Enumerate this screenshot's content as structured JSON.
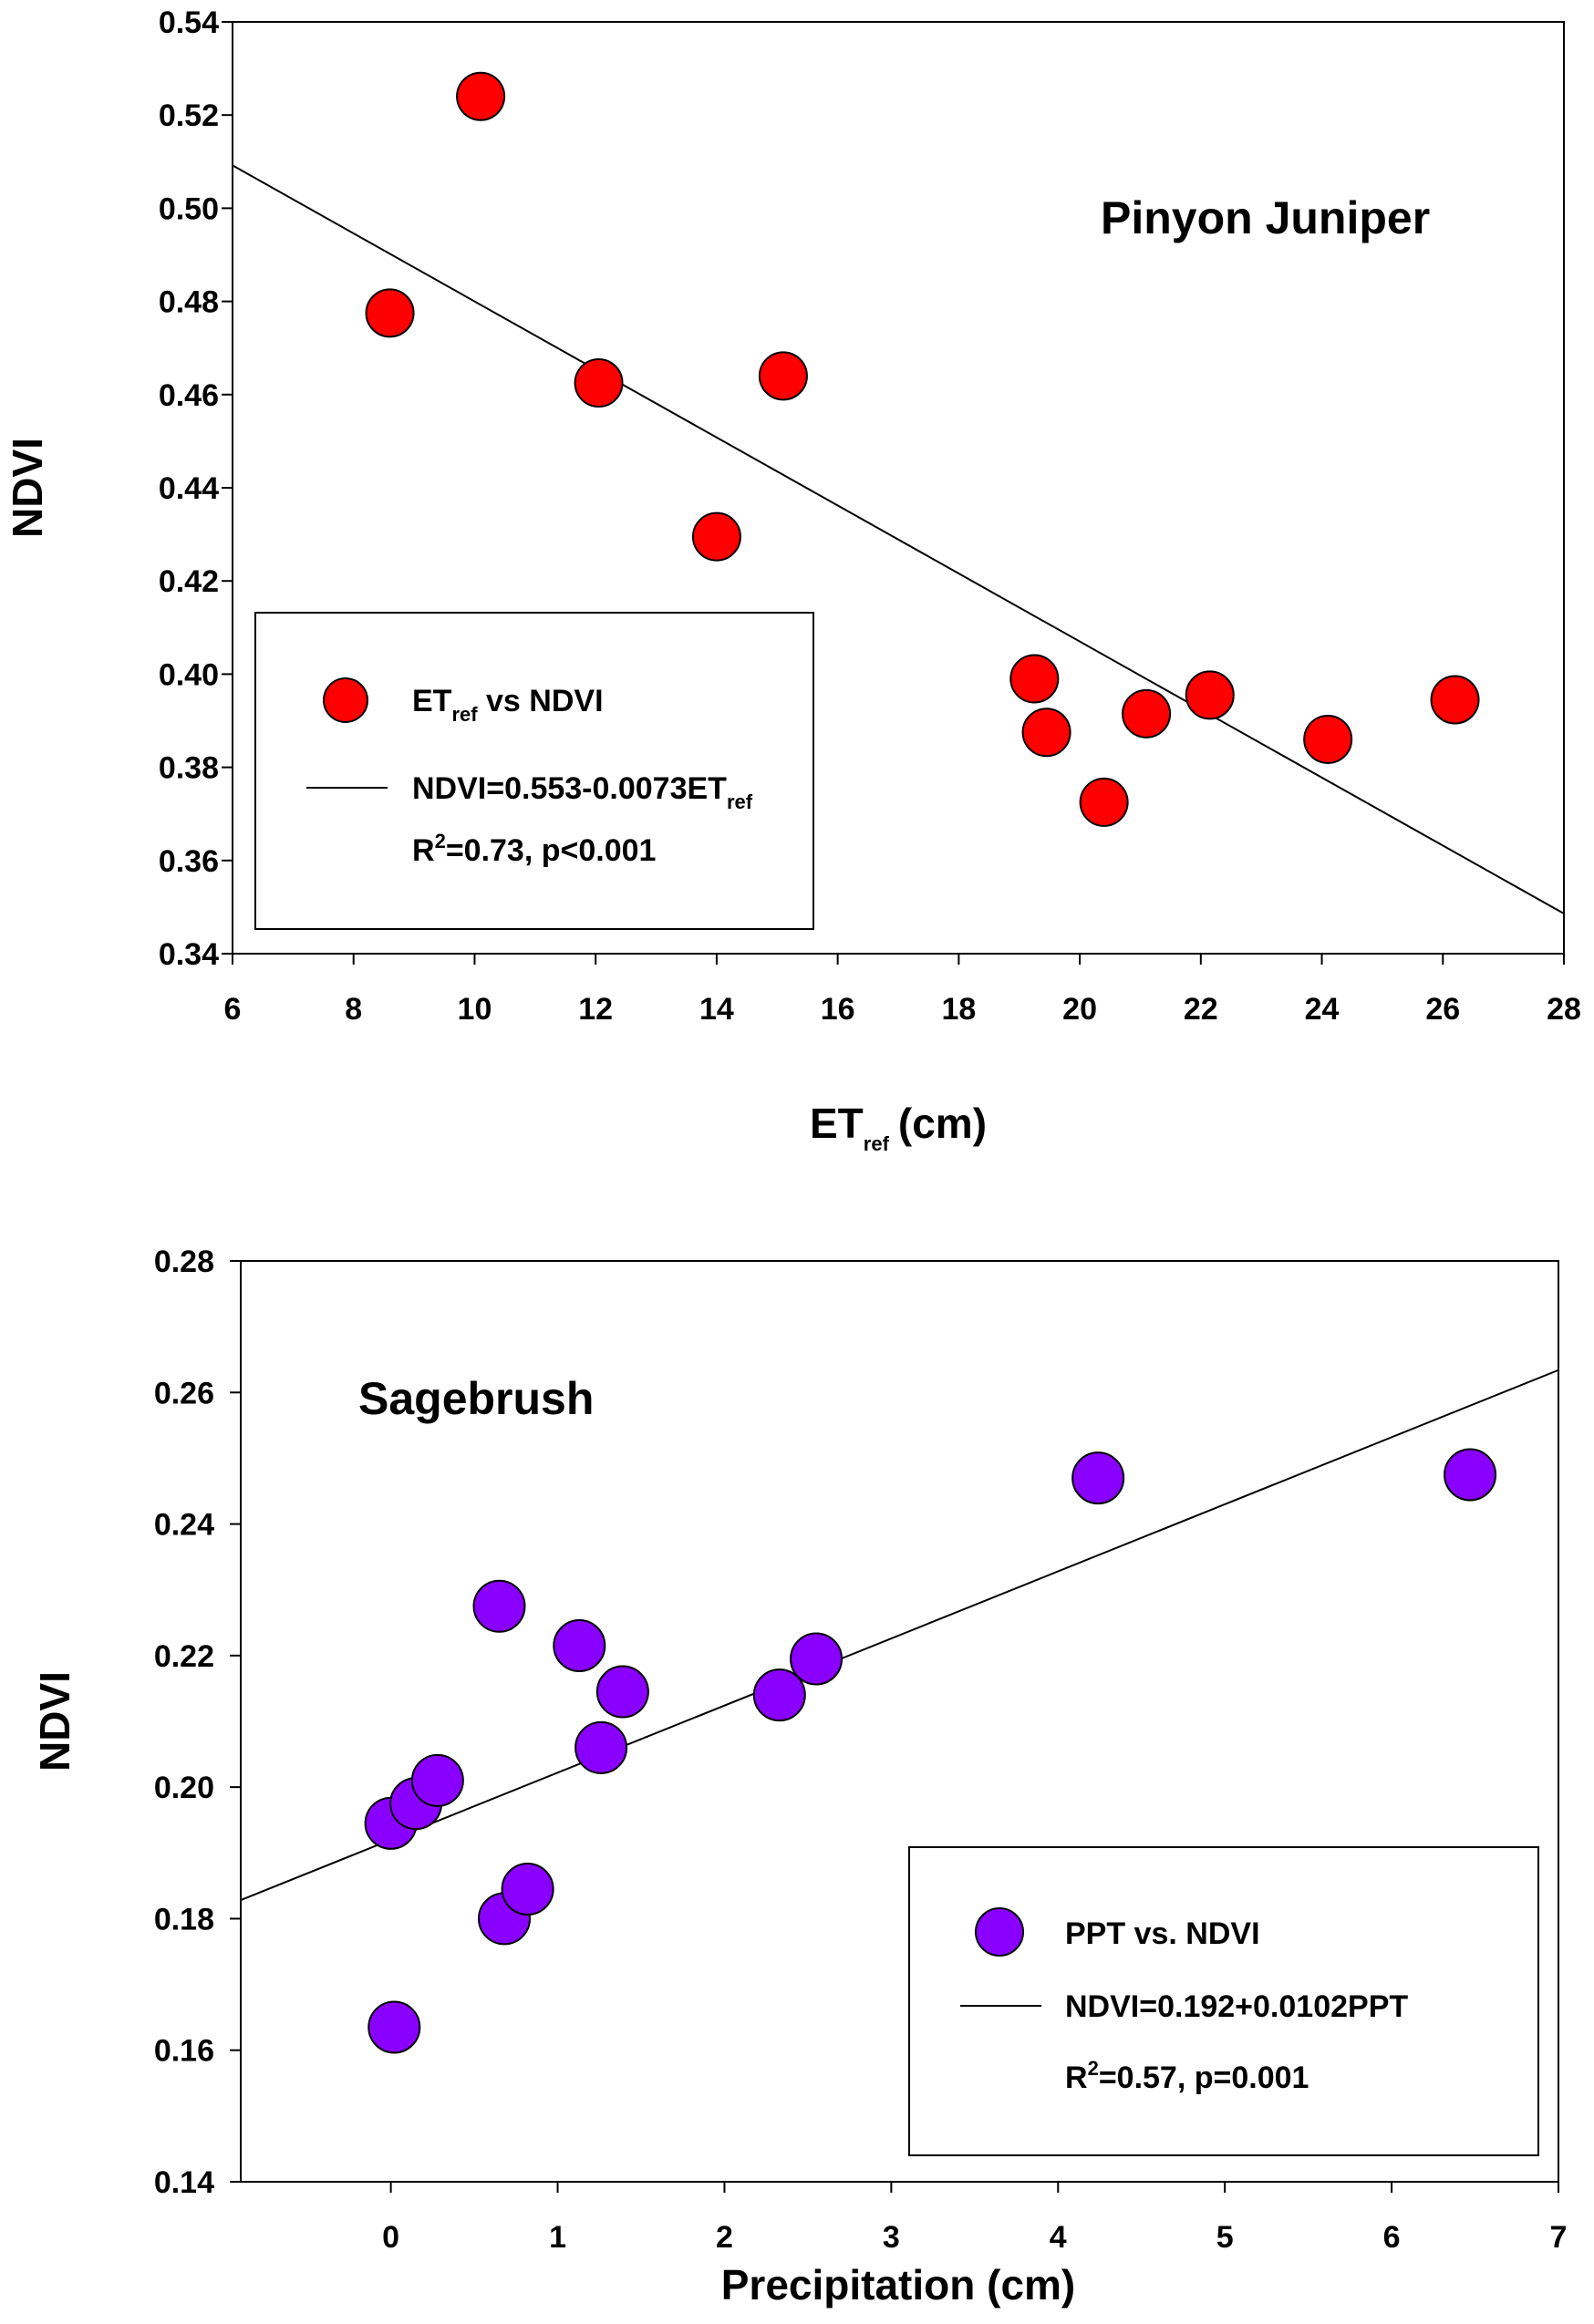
{
  "chart_data": [
    {
      "type": "scatter",
      "title": "",
      "annotation": "Pinyon Juniper",
      "xlabel": {
        "main": "ET",
        "sub": "ref",
        "unit": "(cm)"
      },
      "ylabel": "NDVI",
      "xlim": [
        6,
        28
      ],
      "ylim": [
        0.34,
        0.54
      ],
      "xticks": [
        "6",
        "8",
        "10",
        "12",
        "14",
        "16",
        "18",
        "20",
        "22",
        "24",
        "26",
        "28"
      ],
      "yticks": [
        "0.34",
        "0.36",
        "0.38",
        "0.40",
        "0.42",
        "0.44",
        "0.46",
        "0.48",
        "0.50",
        "0.52",
        "0.54"
      ],
      "grid": false,
      "legend_position": "bottom-left",
      "marker_color": "#ff0000",
      "series": [
        {
          "name": "ET_ref vs NDVI",
          "points": [
            {
              "x": 8.6,
              "y": 0.4775
            },
            {
              "x": 10.1,
              "y": 0.524
            },
            {
              "x": 12.05,
              "y": 0.4625
            },
            {
              "x": 14.0,
              "y": 0.4295
            },
            {
              "x": 15.1,
              "y": 0.464
            },
            {
              "x": 19.25,
              "y": 0.399
            },
            {
              "x": 19.45,
              "y": 0.3875
            },
            {
              "x": 20.4,
              "y": 0.3725
            },
            {
              "x": 21.1,
              "y": 0.3915
            },
            {
              "x": 22.15,
              "y": 0.3955
            },
            {
              "x": 24.1,
              "y": 0.386
            },
            {
              "x": 26.2,
              "y": 0.3945
            }
          ]
        }
      ],
      "fit": {
        "intercept": 0.553,
        "slope": -0.0073,
        "x_range": [
          6,
          28
        ]
      },
      "legend": {
        "marker_label_main": "ET",
        "marker_label_sub": "ref",
        "marker_label_rest": " vs NDVI",
        "line_label_main": "NDVI=0.553-0.0073ET",
        "line_label_sub": "ref",
        "r2_prefix": "R",
        "r2_sup": "2",
        "r2_rest": "=0.73, p<0.001"
      }
    },
    {
      "type": "scatter",
      "title": "",
      "annotation": "Sagebrush",
      "xlabel": "Precipitation (cm)",
      "ylabel": "NDVI",
      "xlim": [
        -0.9,
        7
      ],
      "ylim": [
        0.14,
        0.28
      ],
      "xticks": [
        "0",
        "1",
        "2",
        "3",
        "4",
        "5",
        "6",
        "7"
      ],
      "yticks": [
        "0.14",
        "0.16",
        "0.18",
        "0.20",
        "0.22",
        "0.24",
        "0.26",
        "0.28"
      ],
      "grid": false,
      "legend_position": "bottom-right",
      "marker_color": "#8a00ff",
      "series": [
        {
          "name": "PPT vs. NDVI",
          "points": [
            {
              "x": 0.0,
              "y": 0.1945
            },
            {
              "x": 0.02,
              "y": 0.1635
            },
            {
              "x": 0.15,
              "y": 0.1975
            },
            {
              "x": 0.28,
              "y": 0.201
            },
            {
              "x": 0.65,
              "y": 0.2275
            },
            {
              "x": 0.68,
              "y": 0.18
            },
            {
              "x": 0.82,
              "y": 0.1845
            },
            {
              "x": 1.13,
              "y": 0.2215
            },
            {
              "x": 1.26,
              "y": 0.206
            },
            {
              "x": 1.39,
              "y": 0.2145
            },
            {
              "x": 2.33,
              "y": 0.214
            },
            {
              "x": 2.55,
              "y": 0.2195
            },
            {
              "x": 4.24,
              "y": 0.247
            },
            {
              "x": 6.47,
              "y": 0.2475
            }
          ]
        }
      ],
      "fit": {
        "intercept": 0.192,
        "slope": 0.0102,
        "x_range": [
          -0.9,
          7
        ]
      },
      "legend": {
        "marker_label": "PPT vs. NDVI",
        "line_label": "NDVI=0.192+0.0102PPT",
        "r2_prefix": "R",
        "r2_sup": "2",
        "r2_rest": "=0.57,  p=0.001"
      }
    }
  ]
}
